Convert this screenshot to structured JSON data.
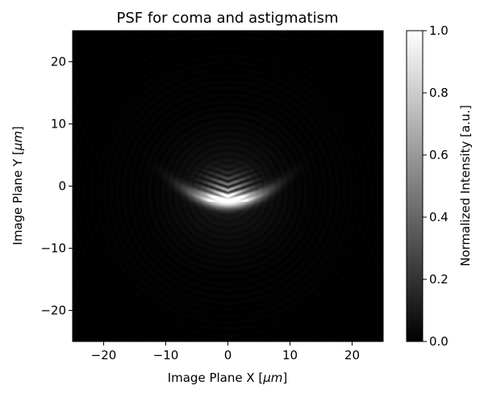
{
  "chart_data": {
    "type": "heatmap",
    "title": "PSF for coma and astigmatism",
    "xlabel_prefix": "Image Plane X [",
    "xlabel_unit": "μm",
    "xlabel_suffix": "]",
    "ylabel_prefix": "Image Plane Y [",
    "ylabel_unit": "μm",
    "ylabel_suffix": "]",
    "xlim": [
      -25,
      25
    ],
    "ylim": [
      -25,
      25
    ],
    "x_ticks": [
      -20,
      -10,
      0,
      10,
      20
    ],
    "y_ticks": [
      -20,
      -10,
      0,
      10,
      20
    ],
    "x_tick_labels": [
      "−20",
      "−10",
      "0",
      "10",
      "20"
    ],
    "y_tick_labels": [
      "−20",
      "−10",
      "0",
      "10",
      "20"
    ],
    "colormap": "gray",
    "colorbar": {
      "label": "Normalized Intensity [a.u.]",
      "range": [
        0.0,
        1.0
      ],
      "ticks": [
        0.0,
        0.2,
        0.4,
        0.6,
        0.8,
        1.0
      ],
      "tick_labels": [
        "0.0",
        "0.2",
        "0.4",
        "0.6",
        "0.8",
        "1.0"
      ]
    },
    "psf_peak": {
      "x": 0,
      "y": -2.5,
      "value": 1.0
    },
    "grid": false,
    "legend": "none"
  },
  "colors": {
    "background_min": "#000000",
    "background_max": "#ffffff"
  }
}
